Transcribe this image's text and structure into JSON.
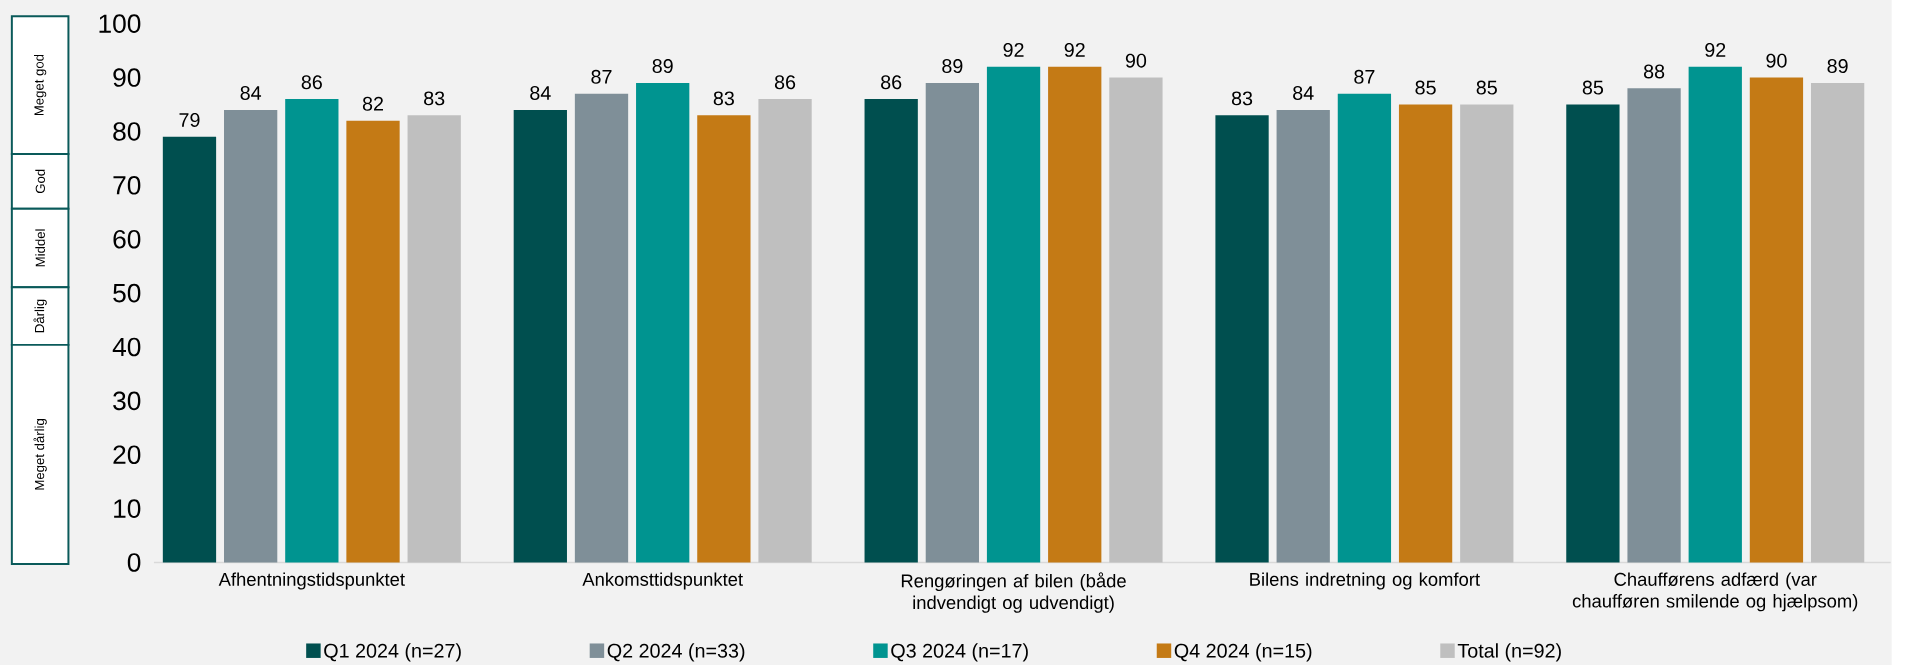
{
  "chart_data": {
    "type": "bar",
    "categories": [
      "Afhentningstidspunktet",
      "Ankomsttidspunktet",
      "Rengøringen af bilen (både indvendigt og udvendigt)",
      "Bilens indretning og komfort",
      "Chaufførens adfærd (var chaufføren smilende og hjælpsom)"
    ],
    "series": [
      {
        "name": "Q1 2024 (n=27)",
        "color": "#004f4f",
        "values": [
          79,
          84,
          86,
          83,
          85
        ]
      },
      {
        "name": "Q2 2024 (n=33)",
        "color": "#7f8f98",
        "values": [
          84,
          87,
          89,
          84,
          88
        ]
      },
      {
        "name": "Q3 2024 (n=17)",
        "color": "#009490",
        "values": [
          86,
          89,
          92,
          87,
          92
        ]
      },
      {
        "name": "Q4 2024 (n=15)",
        "color": "#c47a15",
        "values": [
          82,
          83,
          92,
          85,
          90
        ]
      },
      {
        "name": "Total (n=92)",
        "color": "#bfbfbf",
        "values": [
          83,
          86,
          90,
          85,
          89
        ]
      }
    ],
    "ylim": [
      0,
      100
    ],
    "yticks": [
      0,
      10,
      20,
      30,
      40,
      50,
      60,
      70,
      80,
      90,
      100
    ],
    "annotations": [
      "Meget god",
      "God",
      "Middel",
      "Dårlig",
      "Meget dårlig"
    ],
    "data_labels": true,
    "grid": false,
    "legend": "bottom"
  }
}
